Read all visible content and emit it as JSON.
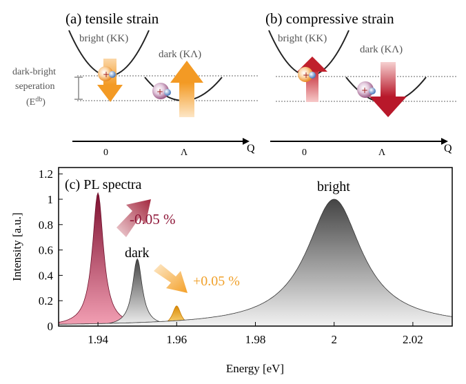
{
  "panel_a": {
    "title": "(a) tensile strain",
    "bright_label": "bright (KK)",
    "dark_label": "dark (KΛ)",
    "sep_label_1": "dark-bright",
    "sep_label_2": "seperation",
    "sep_label_3a": "(E",
    "sep_label_3sup": "db",
    "sep_label_3b": ")",
    "tick_0": "0",
    "tick_lambda": "Λ",
    "axis_q": "Q"
  },
  "panel_b": {
    "title": "(b) compressive strain",
    "bright_label": "bright (KK)",
    "dark_label": "dark (KΛ)",
    "tick_0": "0",
    "tick_lambda": "Λ",
    "axis_q": "Q"
  },
  "colors": {
    "orange": "#f5a23a",
    "red": "#c8102e",
    "crimson": "#8e1638",
    "gray": "#555555"
  },
  "chart_data": {
    "type": "area",
    "panel_label": "(c) PL spectra",
    "xlabel": "Energy [eV]",
    "ylabel": "Intensity [a.u.]",
    "xlim": [
      1.93,
      2.03
    ],
    "ylim": [
      0,
      1.25
    ],
    "xticks": [
      "1.94",
      "1.96",
      "1.98",
      "2",
      "2.02"
    ],
    "yticks": [
      "0",
      "0.2",
      "0.4",
      "0.6",
      "0.8",
      "1",
      "1.2"
    ],
    "series": [
      {
        "center": 1.94,
        "peak": 1.05,
        "width": 0.0017,
        "color": "crimson"
      },
      {
        "center": 1.95,
        "peak": 0.53,
        "width": 0.0015,
        "color": "gray"
      },
      {
        "center": 1.96,
        "peak": 0.16,
        "width": 0.0013,
        "color": "orange"
      },
      {
        "center": 2.0,
        "peak": 1.0,
        "width": 0.0085,
        "color": "gray"
      }
    ],
    "annotations": {
      "bright": "bright",
      "dark": "dark",
      "minus": "-0.05 %",
      "plus": "+0.05 %"
    }
  }
}
